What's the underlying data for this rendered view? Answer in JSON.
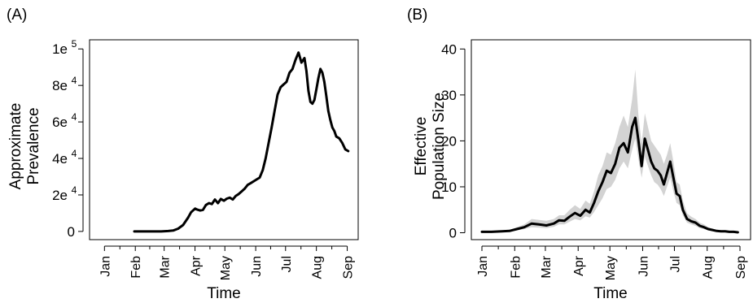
{
  "chart_data": [
    {
      "panel_label": "(A)",
      "type": "line",
      "xlabel": "Time",
      "ylabel": [
        "Approximate",
        "Prevalence"
      ],
      "x_tick_labels": [
        "Jan",
        "Feb",
        "Mar",
        "Apr",
        "May",
        "Jun",
        "Jul",
        "Aug",
        "Sep"
      ],
      "y_ticks": [
        {
          "value": 0,
          "mantissa": "0",
          "exp": ""
        },
        {
          "value": 20000,
          "mantissa": "2e",
          "exp": "4"
        },
        {
          "value": 40000,
          "mantissa": "4e",
          "exp": "4"
        },
        {
          "value": 60000,
          "mantissa": "6e",
          "exp": "4"
        },
        {
          "value": 80000,
          "mantissa": "8e",
          "exp": "4"
        },
        {
          "value": 100000,
          "mantissa": "1e",
          "exp": "5"
        }
      ],
      "ylim": [
        -4500,
        105000
      ],
      "series": [
        {
          "x": [
            "2020-01-31",
            "2020-02-10",
            "2020-02-20",
            "2020-02-27",
            "2020-03-05",
            "2020-03-10",
            "2020-03-15",
            "2020-03-20",
            "2020-03-25",
            "2020-03-28",
            "2020-04-01",
            "2020-04-03",
            "2020-04-06",
            "2020-04-09",
            "2020-04-12",
            "2020-04-15",
            "2020-04-18",
            "2020-04-21",
            "2020-04-24",
            "2020-04-27",
            "2020-04-30",
            "2020-05-03",
            "2020-05-06",
            "2020-05-09",
            "2020-05-12",
            "2020-05-15",
            "2020-05-18",
            "2020-05-21",
            "2020-05-24",
            "2020-05-27",
            "2020-05-30",
            "2020-06-02",
            "2020-06-05",
            "2020-06-08",
            "2020-06-11",
            "2020-06-14",
            "2020-06-17",
            "2020-06-20",
            "2020-06-23",
            "2020-06-26",
            "2020-06-29",
            "2020-07-02",
            "2020-07-05",
            "2020-07-08",
            "2020-07-11",
            "2020-07-14",
            "2020-07-17",
            "2020-07-20",
            "2020-07-22",
            "2020-07-24",
            "2020-07-26",
            "2020-07-28",
            "2020-07-30",
            "2020-08-01",
            "2020-08-03",
            "2020-08-05",
            "2020-08-07",
            "2020-08-09",
            "2020-08-11",
            "2020-08-13",
            "2020-08-15",
            "2020-08-17",
            "2020-08-19",
            "2020-08-21",
            "2020-08-24",
            "2020-08-27",
            "2020-08-30",
            "2020-09-02"
          ],
          "y": [
            0,
            0,
            0,
            0,
            200,
            500,
            1500,
            3500,
            7500,
            10500,
            12500,
            12000,
            11500,
            11800,
            14500,
            15500,
            15000,
            17500,
            15500,
            17800,
            16800,
            18000,
            18500,
            17500,
            19500,
            20500,
            22000,
            23500,
            25500,
            26500,
            27500,
            28500,
            29500,
            33500,
            40000,
            48500,
            57000,
            66000,
            75000,
            79000,
            80500,
            82000,
            87000,
            89000,
            94000,
            98000,
            92500,
            95000,
            88000,
            77000,
            71000,
            70000,
            72000,
            78000,
            84000,
            89000,
            87000,
            82000,
            74000,
            66000,
            61000,
            57000,
            55000,
            52000,
            51000,
            48500,
            45000,
            44000
          ]
        }
      ]
    },
    {
      "panel_label": "(B)",
      "type": "line",
      "xlabel": "Time",
      "ylabel": [
        "Effective",
        "Population Size"
      ],
      "x_tick_labels": [
        "Jan",
        "Feb",
        "Mar",
        "Apr",
        "May",
        "Jun",
        "Jul",
        "Aug",
        "Sep"
      ],
      "y_ticks": [
        {
          "value": 0,
          "mantissa": "0",
          "exp": ""
        },
        {
          "value": 10,
          "mantissa": "10",
          "exp": ""
        },
        {
          "value": 20,
          "mantissa": "20",
          "exp": ""
        },
        {
          "value": 30,
          "mantissa": "30",
          "exp": ""
        },
        {
          "value": 40,
          "mantissa": "40",
          "exp": ""
        }
      ],
      "ylim": [
        -1.5,
        42
      ],
      "band_color": "#d3d3d3",
      "series": [
        {
          "x": [
            "2020-01-01",
            "2020-01-10",
            "2020-01-20",
            "2020-01-27",
            "2020-02-03",
            "2020-02-10",
            "2020-02-17",
            "2020-02-24",
            "2020-03-02",
            "2020-03-09",
            "2020-03-14",
            "2020-03-19",
            "2020-03-24",
            "2020-03-29",
            "2020-04-03",
            "2020-04-08",
            "2020-04-12",
            "2020-04-16",
            "2020-04-20",
            "2020-04-24",
            "2020-04-28",
            "2020-05-02",
            "2020-05-06",
            "2020-05-10",
            "2020-05-14",
            "2020-05-18",
            "2020-05-22",
            "2020-05-25",
            "2020-05-28",
            "2020-05-31",
            "2020-06-03",
            "2020-06-06",
            "2020-06-09",
            "2020-06-12",
            "2020-06-15",
            "2020-06-18",
            "2020-06-21",
            "2020-06-24",
            "2020-06-27",
            "2020-06-30",
            "2020-07-03",
            "2020-07-06",
            "2020-07-09",
            "2020-07-13",
            "2020-07-17",
            "2020-07-21",
            "2020-07-25",
            "2020-07-29",
            "2020-08-02",
            "2020-08-06",
            "2020-08-10",
            "2020-08-14",
            "2020-08-18",
            "2020-08-22",
            "2020-08-26",
            "2020-08-30"
          ],
          "y": [
            0.2,
            0.2,
            0.3,
            0.4,
            0.8,
            1.2,
            2.0,
            1.8,
            1.6,
            2.0,
            2.7,
            2.6,
            3.5,
            4.3,
            3.7,
            5.0,
            4.4,
            6.5,
            9.0,
            11.0,
            13.5,
            13.0,
            15.0,
            18.5,
            19.5,
            17.5,
            23.0,
            25.0,
            20.0,
            14.5,
            20.5,
            18.0,
            15.5,
            14.0,
            13.5,
            12.5,
            10.5,
            13.0,
            15.5,
            12.0,
            8.5,
            8.0,
            5.0,
            3.0,
            2.5,
            2.2,
            1.5,
            1.2,
            0.8,
            0.6,
            0.4,
            0.3,
            0.3,
            0.2,
            0.2,
            0.1
          ],
          "lower": [
            0.1,
            0.1,
            0.2,
            0.3,
            0.5,
            0.8,
            1.2,
            1.1,
            1.0,
            1.3,
            1.8,
            1.8,
            2.4,
            3.0,
            2.7,
            3.6,
            3.3,
            4.5,
            6.0,
            7.5,
            9.5,
            10.0,
            11.5,
            14.0,
            15.5,
            14.0,
            18.0,
            20.5,
            16.0,
            12.0,
            16.5,
            14.5,
            12.5,
            11.0,
            10.5,
            9.5,
            8.0,
            10.0,
            12.0,
            9.0,
            6.5,
            6.0,
            3.8,
            2.2,
            1.8,
            1.5,
            1.0,
            0.8,
            0.5,
            0.4,
            0.2,
            0.2,
            0.2,
            0.1,
            0.1,
            0.05
          ],
          "upper": [
            0.3,
            0.3,
            0.4,
            0.6,
            1.2,
            1.8,
            3.0,
            2.8,
            2.6,
            3.0,
            3.8,
            3.8,
            5.0,
            6.0,
            5.2,
            7.0,
            6.3,
            9.0,
            12.5,
            14.5,
            17.5,
            17.0,
            19.5,
            23.0,
            25.5,
            23.0,
            29.0,
            35.5,
            25.5,
            19.5,
            26.0,
            23.0,
            20.0,
            19.0,
            18.0,
            17.0,
            15.0,
            17.0,
            19.5,
            15.5,
            11.0,
            10.5,
            7.0,
            4.2,
            3.5,
            3.0,
            2.2,
            1.8,
            1.2,
            0.9,
            0.6,
            0.5,
            0.4,
            0.3,
            0.3,
            0.2
          ]
        }
      ]
    }
  ]
}
